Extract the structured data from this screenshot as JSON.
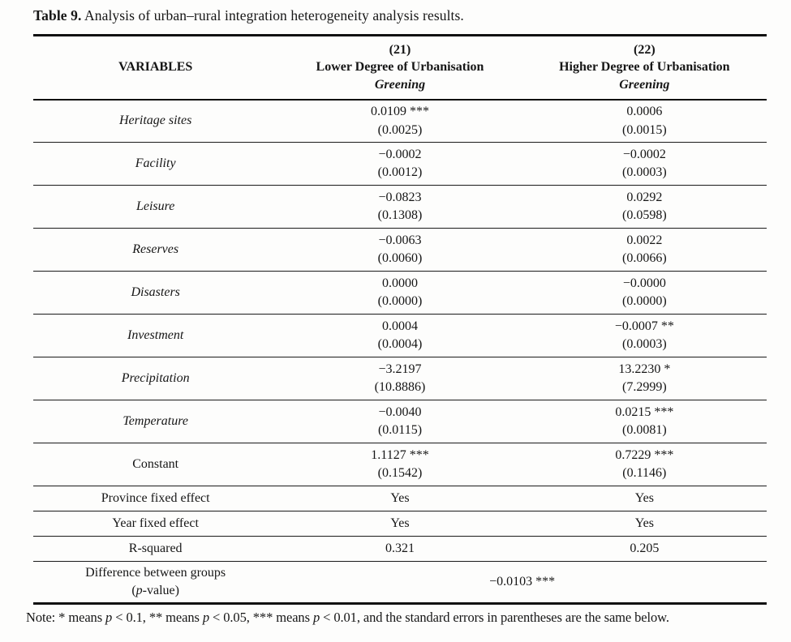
{
  "caption": {
    "label": "Table 9.",
    "text": "Analysis of urban–rural integration heterogeneity analysis results."
  },
  "table": {
    "header": {
      "variables": "VARIABLES",
      "col21": {
        "number": "(21)",
        "group": "Lower Degree of Urbanisation",
        "outcome": "Greening"
      },
      "col22": {
        "number": "(22)",
        "group": "Higher Degree of Urbanisation",
        "outcome": "Greening"
      }
    },
    "rows": [
      {
        "variable": "Heritage sites",
        "c21": {
          "est": "0.0109 ***",
          "se": "(0.0025)"
        },
        "c22": {
          "est": "0.0006",
          "se": "(0.0015)"
        }
      },
      {
        "variable": "Facility",
        "c21": {
          "est": "−0.0002",
          "se": "(0.0012)"
        },
        "c22": {
          "est": "−0.0002",
          "se": "(0.0003)"
        }
      },
      {
        "variable": "Leisure",
        "c21": {
          "est": "−0.0823",
          "se": "(0.1308)"
        },
        "c22": {
          "est": "0.0292",
          "se": "(0.0598)"
        }
      },
      {
        "variable": "Reserves",
        "c21": {
          "est": "−0.0063",
          "se": "(0.0060)"
        },
        "c22": {
          "est": "0.0022",
          "se": "(0.0066)"
        }
      },
      {
        "variable": "Disasters",
        "c21": {
          "est": "0.0000",
          "se": "(0.0000)"
        },
        "c22": {
          "est": "−0.0000",
          "se": "(0.0000)"
        }
      },
      {
        "variable": "Investment",
        "c21": {
          "est": "0.0004",
          "se": "(0.0004)"
        },
        "c22": {
          "est": "−0.0007 **",
          "se": "(0.0003)"
        }
      },
      {
        "variable": "Precipitation",
        "c21": {
          "est": "−3.2197",
          "se": "(10.8886)"
        },
        "c22": {
          "est": "13.2230 *",
          "se": "(7.2999)"
        }
      },
      {
        "variable": "Temperature",
        "c21": {
          "est": "−0.0040",
          "se": "(0.0115)"
        },
        "c22": {
          "est": "0.0215 ***",
          "se": "(0.0081)"
        }
      },
      {
        "variable": "Constant",
        "c21": {
          "est": "1.1127 ***",
          "se": "(0.1542)"
        },
        "c22": {
          "est": "0.7229 ***",
          "se": "(0.1146)"
        }
      }
    ],
    "fixed_rows": [
      {
        "label": "Province fixed effect",
        "c21": "Yes",
        "c22": "Yes"
      },
      {
        "label": "Year fixed effect",
        "c21": "Yes",
        "c22": "Yes"
      },
      {
        "label": "R-squared",
        "c21": "0.321",
        "c22": "0.205"
      }
    ],
    "diff_row": {
      "label_line1": "Difference between groups",
      "label_line2_segments": [
        {
          "text": "(",
          "italic": false
        },
        {
          "text": "p",
          "italic": true
        },
        {
          "text": "-value)",
          "italic": false
        }
      ],
      "value": "−0.0103 ***"
    }
  },
  "note": {
    "segments": [
      {
        "text": "Note: * means ",
        "italic": false
      },
      {
        "text": "p",
        "italic": true
      },
      {
        "text": " < 0.1, ** means ",
        "italic": false
      },
      {
        "text": "p",
        "italic": true
      },
      {
        "text": " < 0.05, *** means ",
        "italic": false
      },
      {
        "text": "p",
        "italic": true
      },
      {
        "text": " < 0.01, and the standard errors in parentheses are the same below.",
        "italic": false
      }
    ]
  }
}
